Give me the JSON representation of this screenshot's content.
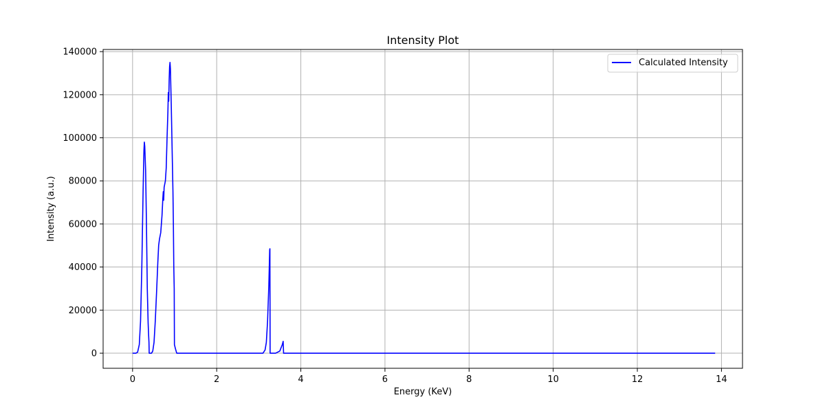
{
  "chart_data": {
    "type": "line",
    "title": "Intensity Plot",
    "xlabel": "Energy (KeV)",
    "ylabel": "Intensity (a.u.)",
    "xlim": [
      -0.7,
      14.5
    ],
    "ylim": [
      -7000,
      141000
    ],
    "xticks": [
      0,
      2,
      4,
      6,
      8,
      10,
      12,
      14
    ],
    "yticks": [
      0,
      20000,
      40000,
      60000,
      80000,
      100000,
      120000,
      140000
    ],
    "grid": true,
    "legend_position": "top-right",
    "series": [
      {
        "name": "Calculated Intensity",
        "color": "#0000ff",
        "points": [
          [
            0.0,
            0
          ],
          [
            0.08,
            0
          ],
          [
            0.12,
            500
          ],
          [
            0.16,
            4000
          ],
          [
            0.19,
            15000
          ],
          [
            0.22,
            40000
          ],
          [
            0.25,
            75000
          ],
          [
            0.27,
            94000
          ],
          [
            0.28,
            98000
          ],
          [
            0.29,
            96000
          ],
          [
            0.31,
            85000
          ],
          [
            0.33,
            60000
          ],
          [
            0.35,
            30000
          ],
          [
            0.37,
            14000
          ],
          [
            0.38,
            9000
          ],
          [
            0.39,
            5000
          ],
          [
            0.395,
            0
          ],
          [
            0.45,
            0
          ],
          [
            0.48,
            1000
          ],
          [
            0.51,
            5000
          ],
          [
            0.54,
            15000
          ],
          [
            0.57,
            28000
          ],
          [
            0.6,
            42000
          ],
          [
            0.62,
            50000
          ],
          [
            0.64,
            53000
          ],
          [
            0.67,
            56000
          ],
          [
            0.7,
            64000
          ],
          [
            0.72,
            72000
          ],
          [
            0.73,
            75000
          ],
          [
            0.74,
            71000
          ],
          [
            0.75,
            77000
          ],
          [
            0.78,
            80000
          ],
          [
            0.8,
            86000
          ],
          [
            0.82,
            100000
          ],
          [
            0.84,
            112000
          ],
          [
            0.85,
            121000
          ],
          [
            0.86,
            117000
          ],
          [
            0.87,
            127000
          ],
          [
            0.88,
            133000
          ],
          [
            0.89,
            135000
          ],
          [
            0.9,
            132000
          ],
          [
            0.92,
            115000
          ],
          [
            0.94,
            95000
          ],
          [
            0.96,
            75000
          ],
          [
            0.97,
            60000
          ],
          [
            0.98,
            40000
          ],
          [
            0.99,
            30000
          ],
          [
            0.995,
            4000
          ],
          [
            1.02,
            2000
          ],
          [
            1.05,
            0
          ],
          [
            1.8,
            0
          ],
          [
            3.1,
            0
          ],
          [
            3.15,
            1500
          ],
          [
            3.18,
            5000
          ],
          [
            3.21,
            15000
          ],
          [
            3.24,
            32000
          ],
          [
            3.26,
            48000
          ],
          [
            3.265,
            48500
          ],
          [
            3.27,
            0
          ],
          [
            3.4,
            0
          ],
          [
            3.5,
            1000
          ],
          [
            3.56,
            4000
          ],
          [
            3.58,
            5500
          ],
          [
            3.59,
            0
          ],
          [
            6.0,
            0
          ],
          [
            10.0,
            0
          ],
          [
            13.85,
            0
          ]
        ]
      }
    ]
  }
}
